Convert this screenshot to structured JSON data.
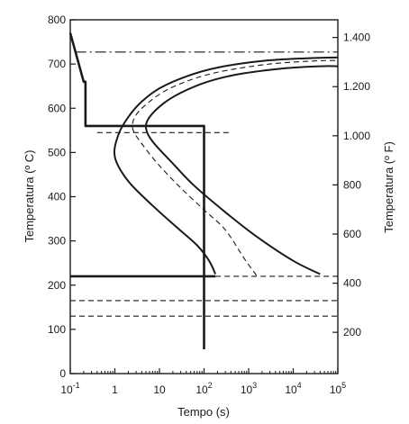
{
  "chart_data": {
    "type": "line",
    "xlabel": "Tempo (s)",
    "ylabel_left": "Temperatura (º C)",
    "ylabel_right": "Temperatura (º F)",
    "x_scale": "log",
    "xlim": [
      0.1,
      100000
    ],
    "ylim": [
      0,
      800
    ],
    "y2lim_F": [
      32,
      1472
    ],
    "x_ticks": [
      {
        "value": 0.1,
        "base": "10",
        "sup": "-1"
      },
      {
        "value": 1,
        "base": "1",
        "sup": ""
      },
      {
        "value": 10,
        "base": "10",
        "sup": ""
      },
      {
        "value": 100,
        "base": "10",
        "sup": "2"
      },
      {
        "value": 1000,
        "base": "10",
        "sup": "3"
      },
      {
        "value": 10000,
        "base": "10",
        "sup": "4"
      },
      {
        "value": 100000,
        "base": "10",
        "sup": "5"
      }
    ],
    "y_ticks_left": [
      {
        "value": 0,
        "label": "0"
      },
      {
        "value": 100,
        "label": "100"
      },
      {
        "value": 200,
        "label": "200"
      },
      {
        "value": 300,
        "label": "300"
      },
      {
        "value": 400,
        "label": "400"
      },
      {
        "value": 500,
        "label": "500"
      },
      {
        "value": 600,
        "label": "600"
      },
      {
        "value": 700,
        "label": "700"
      },
      {
        "value": 800,
        "label": "800"
      }
    ],
    "y_ticks_right": [
      {
        "value": 200,
        "label": "200"
      },
      {
        "value": 400,
        "label": "400"
      },
      {
        "value": 600,
        "label": "600"
      },
      {
        "value": 800,
        "label": "800"
      },
      {
        "value": 1000,
        "label": "1.000"
      },
      {
        "value": 1200,
        "label": "1.200"
      },
      {
        "value": 1400,
        "label": "1.400"
      }
    ],
    "series": [
      {
        "style": "solid",
        "points": [
          [
            180,
            225
          ],
          [
            130,
            255
          ],
          [
            70,
            290
          ],
          [
            25,
            330
          ],
          [
            7,
            380
          ],
          [
            2,
            435
          ],
          [
            1,
            490
          ],
          [
            1.2,
            540
          ],
          [
            2,
            580
          ],
          [
            4,
            615
          ],
          [
            10,
            645
          ],
          [
            40,
            672
          ],
          [
            200,
            692
          ],
          [
            2000,
            707
          ],
          [
            20000,
            713
          ],
          [
            100000,
            715
          ]
        ]
      },
      {
        "style": "dashed",
        "points": [
          [
            1500,
            222
          ],
          [
            800,
            260
          ],
          [
            300,
            325
          ],
          [
            100,
            370
          ],
          [
            30,
            420
          ],
          [
            10,
            470
          ],
          [
            4,
            520
          ],
          [
            2.5,
            555
          ],
          [
            3,
            585
          ],
          [
            6,
            615
          ],
          [
            15,
            642
          ],
          [
            60,
            667
          ],
          [
            300,
            685
          ],
          [
            3000,
            700
          ],
          [
            30000,
            707
          ],
          [
            100000,
            708
          ]
        ]
      },
      {
        "style": "solid",
        "points": [
          [
            40000,
            225
          ],
          [
            10000,
            255
          ],
          [
            1500,
            310
          ],
          [
            300,
            365
          ],
          [
            60,
            425
          ],
          [
            20,
            475
          ],
          [
            7,
            525
          ],
          [
            5,
            555
          ],
          [
            6,
            580
          ],
          [
            12,
            610
          ],
          [
            30,
            635
          ],
          [
            120,
            660
          ],
          [
            600,
            677
          ],
          [
            6000,
            690
          ],
          [
            40000,
            695
          ],
          [
            100000,
            695
          ]
        ]
      },
      {
        "style": "solid-thick",
        "points": [
          [
            0.1,
            770
          ],
          [
            0.2,
            660
          ],
          [
            0.22,
            660
          ],
          [
            0.22,
            560
          ],
          [
            100,
            560
          ],
          [
            100,
            55
          ]
        ]
      }
    ],
    "hlines": [
      {
        "y": 727,
        "style": "dashdot",
        "x_from": 0.13,
        "x_to": 100000
      },
      {
        "y": 545,
        "style": "dashed",
        "x_from": 0.4,
        "x_to": 400
      },
      {
        "y": 220,
        "style": "solid-thick",
        "x_from": 0.1,
        "x_to": 180
      },
      {
        "y": 220,
        "style": "dashed",
        "x_from": 180,
        "x_to": 100000
      },
      {
        "y": 165,
        "style": "dashed",
        "x_from": 0.1,
        "x_to": 100000
      },
      {
        "y": 130,
        "style": "dashed",
        "x_from": 0.1,
        "x_to": 100000
      }
    ],
    "grid": false
  }
}
